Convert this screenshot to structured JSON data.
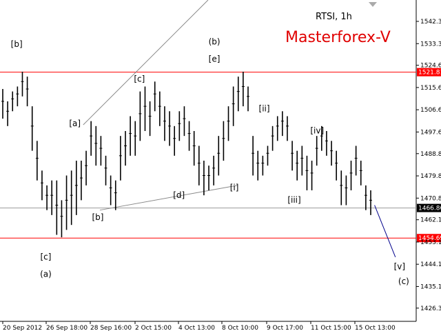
{
  "chart_data": {
    "type": "candlestick",
    "title": "RTSI, 1h",
    "watermark": "Masterforex-V",
    "ylim": [
      1421,
      1551
    ],
    "yticks": [
      1426.35,
      1435.1,
      1444.1,
      1453.1,
      1462.1,
      1470.85,
      1479.85,
      1488.85,
      1497.6,
      1506.6,
      1515.6,
      1524.6,
      1533.35,
      1542.35
    ],
    "ytick_labels": [
      "1426.35",
      "1435.10",
      "1444.10",
      "1453.10",
      "1462.10",
      "1470.85",
      "1479.85",
      "1488.85",
      "1497.60",
      "1506.60",
      "1515.60",
      "1524.60",
      "1533.35",
      "1542.35"
    ],
    "xticks": [
      "20 Sep 2012",
      "26 Sep 18:00",
      "28 Sep 16:00",
      "2 Oct 15:00",
      "4 Oct 13:00",
      "8 Oct 10:00",
      "9 Oct 17:00",
      "11 Oct 15:00",
      "15 Oct 13:00"
    ],
    "hlines": [
      {
        "value": 1521.81,
        "label": "1521.81",
        "color": "#ff0000"
      },
      {
        "value": 1454.69,
        "label": "1454.69",
        "color": "#ff0000"
      },
      {
        "value": 1466.86,
        "label": "1466.86",
        "color": "#999999",
        "current": true
      }
    ],
    "trendlines": [
      {
        "from": [
          0.2,
          1500.5
        ],
        "to": [
          0.5,
          1551
        ],
        "color": "#888888"
      },
      {
        "from": [
          0.24,
          1466
        ],
        "to": [
          0.57,
          1476
        ],
        "color": "#888888"
      },
      {
        "from": [
          0.9,
          1468
        ],
        "to": [
          0.95,
          1447
        ],
        "color": "#00008b"
      }
    ],
    "wave_labels": [
      {
        "text": "[b]",
        "x": 0.04,
        "y": 1532
      },
      {
        "text": "[c]",
        "x": 0.11,
        "y": 1446
      },
      {
        "text": "(a)",
        "x": 0.11,
        "y": 1439
      },
      {
        "text": "[a]",
        "x": 0.18,
        "y": 1500
      },
      {
        "text": "[b]",
        "x": 0.235,
        "y": 1462
      },
      {
        "text": "[c]",
        "x": 0.335,
        "y": 1518
      },
      {
        "text": "[d]",
        "x": 0.43,
        "y": 1471
      },
      {
        "text": "(b)",
        "x": 0.515,
        "y": 1533
      },
      {
        "text": "[e]",
        "x": 0.515,
        "y": 1526
      },
      {
        "text": "[i]",
        "x": 0.563,
        "y": 1474
      },
      {
        "text": "[ii]",
        "x": 0.635,
        "y": 1506
      },
      {
        "text": "[iii]",
        "x": 0.707,
        "y": 1469
      },
      {
        "text": "[iv]",
        "x": 0.762,
        "y": 1497
      },
      {
        "text": "[v]",
        "x": 0.96,
        "y": 1442
      },
      {
        "text": "(c)",
        "x": 0.97,
        "y": 1436
      }
    ],
    "candles_hl": [
      [
        1503,
        1515
      ],
      [
        1500,
        1510
      ],
      [
        1506,
        1514
      ],
      [
        1508,
        1516
      ],
      [
        1512,
        1522
      ],
      [
        1508,
        1520
      ],
      [
        1490,
        1508
      ],
      [
        1478,
        1494
      ],
      [
        1470,
        1482
      ],
      [
        1466,
        1476
      ],
      [
        1464,
        1478
      ],
      [
        1456,
        1478
      ],
      [
        1455,
        1470
      ],
      [
        1458,
        1480
      ],
      [
        1460,
        1482
      ],
      [
        1464,
        1486
      ],
      [
        1470,
        1486
      ],
      [
        1476,
        1490
      ],
      [
        1488,
        1502
      ],
      [
        1484,
        1500
      ],
      [
        1484,
        1496
      ],
      [
        1476,
        1488
      ],
      [
        1468,
        1480
      ],
      [
        1466,
        1478
      ],
      [
        1478,
        1496
      ],
      [
        1484,
        1498
      ],
      [
        1488,
        1504
      ],
      [
        1488,
        1502
      ],
      [
        1494,
        1514
      ],
      [
        1498,
        1516
      ],
      [
        1496,
        1510
      ],
      [
        1506,
        1518
      ],
      [
        1500,
        1514
      ],
      [
        1494,
        1508
      ],
      [
        1492,
        1506
      ],
      [
        1488,
        1500
      ],
      [
        1494,
        1506
      ],
      [
        1496,
        1508
      ],
      [
        1490,
        1502
      ],
      [
        1484,
        1498
      ],
      [
        1476,
        1492
      ],
      [
        1472,
        1486
      ],
      [
        1474,
        1484
      ],
      [
        1476,
        1488
      ],
      [
        1480,
        1496
      ],
      [
        1486,
        1502
      ],
      [
        1494,
        1508
      ],
      [
        1500,
        1516
      ],
      [
        1506,
        1520
      ],
      [
        1508,
        1522
      ],
      [
        1506,
        1516
      ],
      [
        1480,
        1496
      ],
      [
        1478,
        1490
      ],
      [
        1480,
        1488
      ],
      [
        1484,
        1492
      ],
      [
        1490,
        1500
      ],
      [
        1494,
        1504
      ],
      [
        1496,
        1506
      ],
      [
        1494,
        1504
      ],
      [
        1482,
        1494
      ],
      [
        1478,
        1490
      ],
      [
        1480,
        1492
      ],
      [
        1474,
        1488
      ],
      [
        1474,
        1486
      ],
      [
        1484,
        1496
      ],
      [
        1490,
        1500
      ],
      [
        1488,
        1498
      ],
      [
        1484,
        1494
      ],
      [
        1478,
        1490
      ],
      [
        1468,
        1482
      ],
      [
        1468,
        1480
      ],
      [
        1474,
        1486
      ],
      [
        1480,
        1492
      ],
      [
        1476,
        1486
      ],
      [
        1466,
        1476
      ],
      [
        1464,
        1474
      ]
    ]
  }
}
